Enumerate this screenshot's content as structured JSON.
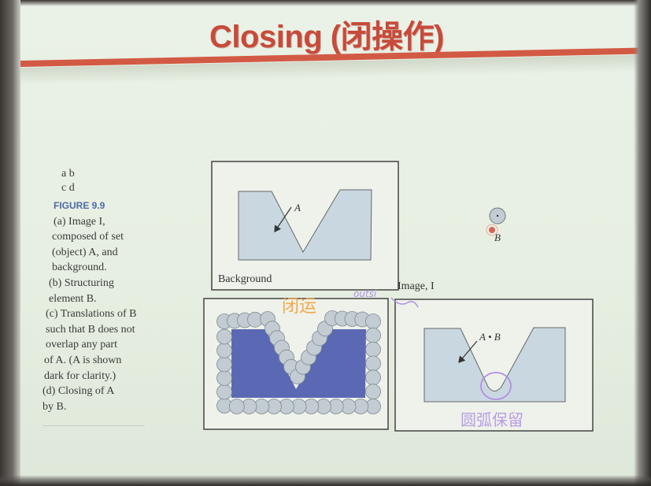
{
  "slide": {
    "title": "Closing (闭操作)"
  },
  "caption": {
    "panel_labels_row1": "a b",
    "panel_labels_row2": "c d",
    "figure_number": "FIGURE 9.9",
    "lines": [
      "(a) Image I,",
      "composed of set",
      "(object) A, and",
      "background.",
      "(b) Structuring",
      "element B.",
      "(c) Translations of B",
      "such that B does not",
      "overlap any part",
      "of A. (A is shown",
      "dark for clarity.)",
      "(d) Closing of A",
      "by B."
    ]
  },
  "figure": {
    "panel_a": {
      "set_label": "A",
      "background_label": "Background"
    },
    "panel_b": {
      "element_label": "B"
    },
    "panel_c": {},
    "panel_d": {
      "image_label": "Image, I",
      "result_label": "A • B"
    }
  },
  "annotations": {
    "orange_text": "闭运",
    "purple_scribble": "outsi",
    "purple_text": "圆弧保留"
  },
  "colors": {
    "title": "#c84a3a",
    "rule": "#d25a45",
    "set_fill": "#c9d8e0",
    "set_dark": "#5b68b4",
    "circle_fill": "#c3ccd2",
    "annotation_orange": "#f2a23a",
    "annotation_purple": "#b18ee6"
  }
}
